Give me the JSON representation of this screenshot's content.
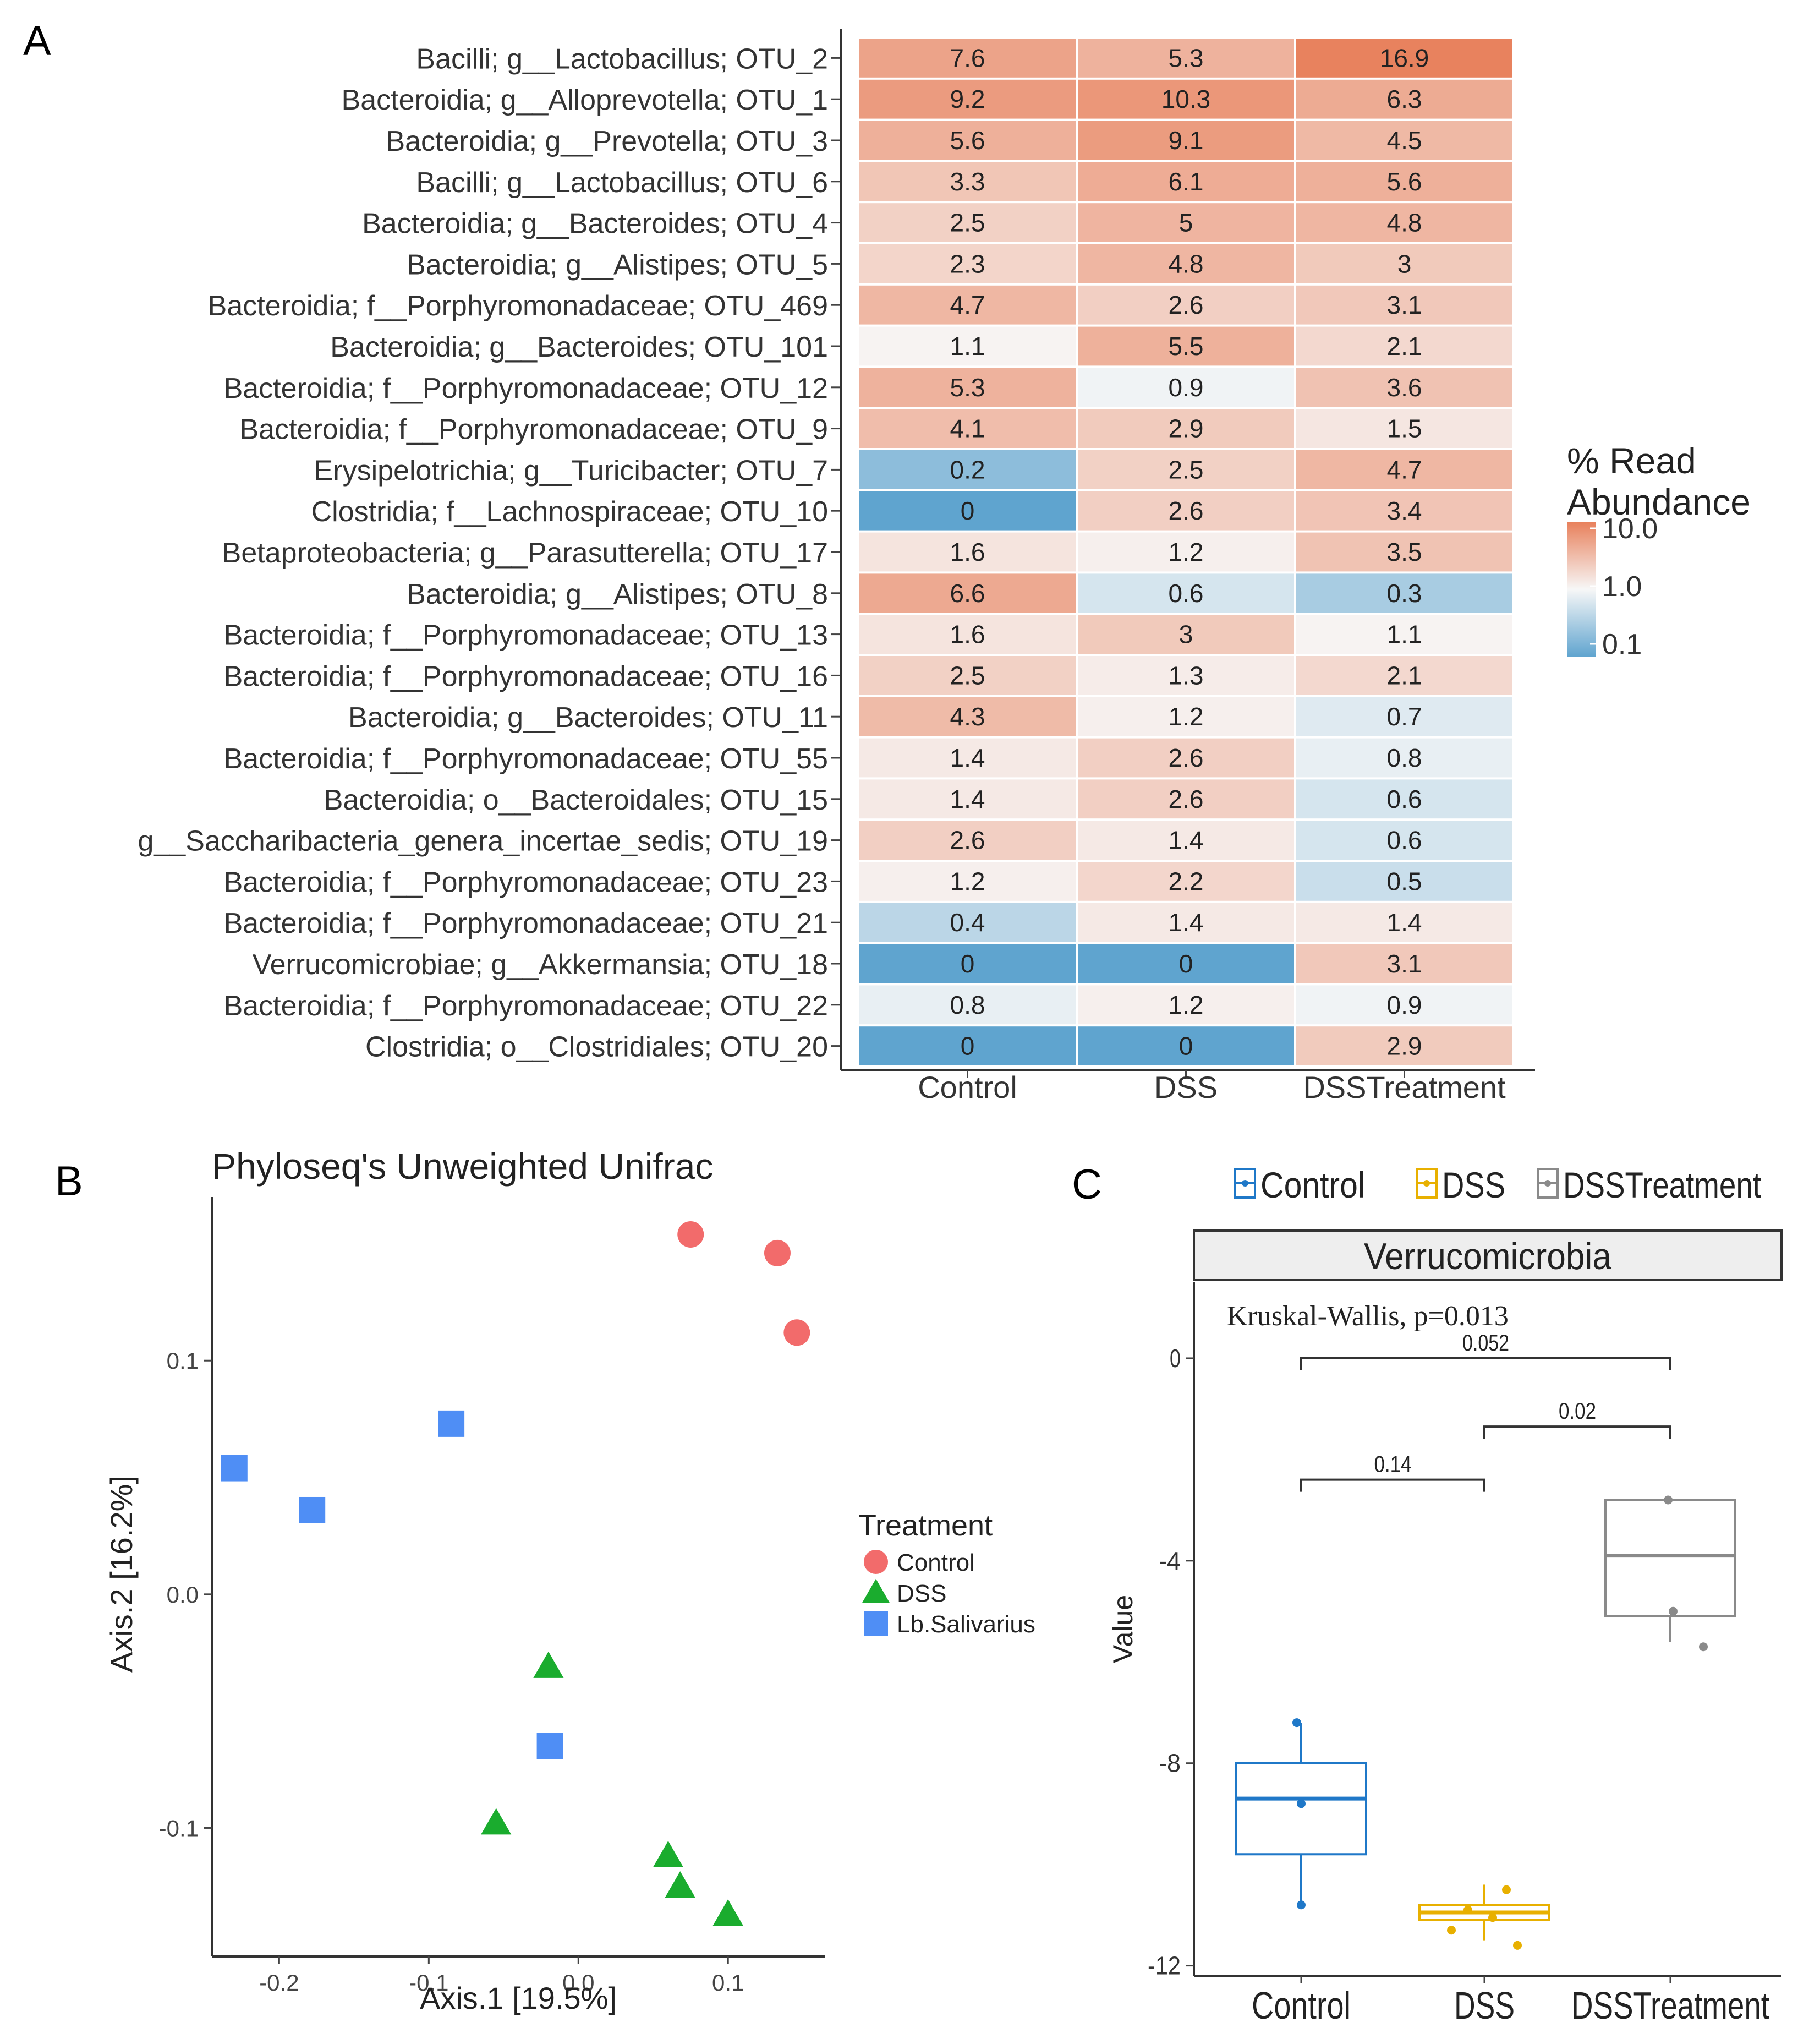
{
  "panels": {
    "a_letter": "A",
    "b_letter": "B",
    "c_letter": "C"
  },
  "colors": {
    "high": "#e8805b",
    "mid": "#f7f7f7",
    "low": "#5fa4cf",
    "control": "#f26b6b",
    "dss": "#1aac2e",
    "lb": "#4f8ef5",
    "c_control": "#1f78c8",
    "c_dss": "#e8b000",
    "c_treat": "#8a8a8a"
  },
  "chart_data": [
    {
      "type": "heatmap",
      "columns": [
        "Control",
        "DSS",
        "DSSTreatment"
      ],
      "rows": [
        "Bacilli; g__Lactobacillus; OTU_2",
        "Bacteroidia; g__Alloprevotella; OTU_1",
        "Bacteroidia; g__Prevotella; OTU_3",
        "Bacilli; g__Lactobacillus; OTU_6",
        "Bacteroidia; g__Bacteroides; OTU_4",
        "Bacteroidia; g__Alistipes; OTU_5",
        "Bacteroidia; f__Porphyromonadaceae; OTU_469",
        "Bacteroidia; g__Bacteroides; OTU_101",
        "Bacteroidia; f__Porphyromonadaceae; OTU_12",
        "Bacteroidia; f__Porphyromonadaceae; OTU_9",
        "Erysipelotrichia; g__Turicibacter; OTU_7",
        "Clostridia; f__Lachnospiraceae; OTU_10",
        "Betaproteobacteria; g__Parasutterella; OTU_17",
        "Bacteroidia; g__Alistipes; OTU_8",
        "Bacteroidia; f__Porphyromonadaceae; OTU_13",
        "Bacteroidia; f__Porphyromonadaceae; OTU_16",
        "Bacteroidia; g__Bacteroides; OTU_11",
        "Bacteroidia; f__Porphyromonadaceae; OTU_55",
        "Bacteroidia; o__Bacteroidales; OTU_15",
        "g__Saccharibacteria_genera_incertae_sedis; OTU_19",
        "Bacteroidia; f__Porphyromonadaceae; OTU_23",
        "Bacteroidia; f__Porphyromonadaceae; OTU_21",
        "Verrucomicrobiae; g__Akkermansia; OTU_18",
        "Bacteroidia; f__Porphyromonadaceae; OTU_22",
        "Clostridia; o__Clostridiales; OTU_20"
      ],
      "values": [
        [
          "7.6",
          "5.3",
          "16.9"
        ],
        [
          "9.2",
          "10.3",
          "6.3"
        ],
        [
          "5.6",
          "9.1",
          "4.5"
        ],
        [
          "3.3",
          "6.1",
          "5.6"
        ],
        [
          "2.5",
          "5",
          "4.8"
        ],
        [
          "2.3",
          "4.8",
          "3"
        ],
        [
          "4.7",
          "2.6",
          "3.1"
        ],
        [
          "1.1",
          "5.5",
          "2.1"
        ],
        [
          "5.3",
          "0.9",
          "3.6"
        ],
        [
          "4.1",
          "2.9",
          "1.5"
        ],
        [
          "0.2",
          "2.5",
          "4.7"
        ],
        [
          "0",
          "2.6",
          "3.4"
        ],
        [
          "1.6",
          "1.2",
          "3.5"
        ],
        [
          "6.6",
          "0.6",
          "0.3"
        ],
        [
          "1.6",
          "3",
          "1.1"
        ],
        [
          "2.5",
          "1.3",
          "2.1"
        ],
        [
          "4.3",
          "1.2",
          "0.7"
        ],
        [
          "1.4",
          "2.6",
          "0.8"
        ],
        [
          "1.4",
          "2.6",
          "0.6"
        ],
        [
          "2.6",
          "1.4",
          "0.6"
        ],
        [
          "1.2",
          "2.2",
          "0.5"
        ],
        [
          "0.4",
          "1.4",
          "1.4"
        ],
        [
          "0",
          "0",
          "3.1"
        ],
        [
          "0.8",
          "1.2",
          "0.9"
        ],
        [
          "0",
          "0",
          "2.9"
        ]
      ],
      "legend_title": "% Read Abundance",
      "legend_title_lines": [
        "% Read",
        "Abundance"
      ],
      "legend_labels": [
        "10.0",
        "1.0",
        "0.1"
      ],
      "scale": "log10"
    },
    {
      "type": "scatter",
      "title": "Phyloseq's Unweighted Unifrac",
      "xlabel": "Axis.1   [19.5%]",
      "ylabel": "Axis.2   [16.2%]",
      "xlim": [
        -0.245,
        0.165
      ],
      "ylim": [
        -0.155,
        0.17
      ],
      "xticks": [
        -0.2,
        -0.1,
        0.0,
        0.1
      ],
      "xtick_labels": [
        "-0.2",
        "-0.1",
        "0.0",
        "0.1"
      ],
      "yticks": [
        -0.1,
        0.0,
        0.1
      ],
      "ytick_labels": [
        "-0.1",
        "0.0",
        "0.1"
      ],
      "legend_title": "Treatment",
      "series": [
        {
          "name": "Control",
          "shape": "circle",
          "points": [
            [
              0.075,
              0.154
            ],
            [
              0.133,
              0.146
            ],
            [
              0.146,
              0.112
            ]
          ]
        },
        {
          "name": "DSS",
          "shape": "triangle",
          "points": [
            [
              -0.02,
              -0.031
            ],
            [
              -0.055,
              -0.098
            ],
            [
              0.06,
              -0.112
            ],
            [
              0.068,
              -0.125
            ],
            [
              0.1,
              -0.137
            ]
          ]
        },
        {
          "name": "Lb.Salivarius",
          "shape": "square",
          "points": [
            [
              -0.085,
              0.073
            ],
            [
              -0.23,
              0.054
            ],
            [
              -0.178,
              0.036
            ],
            [
              -0.019,
              -0.065
            ]
          ]
        }
      ]
    },
    {
      "type": "box",
      "facet_title": "Verrucomicrobia",
      "stat_text": "Kruskal-Wallis,  p=0.013",
      "ylabel": "Value",
      "ylim": [
        -12.2,
        1.5
      ],
      "yticks": [
        0,
        -4,
        -8,
        -12
      ],
      "ytick_labels": [
        "0",
        "-4",
        "-8",
        "-12"
      ],
      "categories": [
        "Control",
        "DSS",
        "DSSTreatment"
      ],
      "legend": [
        "Control",
        "DSS",
        "DSSTreatment"
      ],
      "boxes": [
        {
          "name": "Control",
          "lower_whisker": -10.8,
          "q1": -9.8,
          "median": -8.7,
          "q3": -8.0,
          "upper_whisker": -7.2,
          "points": [
            -7.2,
            -8.8,
            -10.8
          ]
        },
        {
          "name": "DSS",
          "lower_whisker": -11.5,
          "q1": -11.1,
          "median": -10.95,
          "q3": -10.8,
          "upper_whisker": -10.4,
          "points": [
            -10.5,
            -10.9,
            -11.05,
            -11.3,
            -11.6
          ]
        },
        {
          "name": "DSSTreatment",
          "lower_whisker": -5.6,
          "q1": -5.1,
          "median": -3.9,
          "q3": -2.8,
          "upper_whisker": -2.8,
          "points": [
            -2.8,
            -5.0,
            -5.7
          ]
        }
      ],
      "comparisons": [
        {
          "from": 0,
          "to": 2,
          "y": 0.0,
          "label": "0.052"
        },
        {
          "from": 1,
          "to": 2,
          "y": -1.35,
          "label": "0.02"
        },
        {
          "from": 0,
          "to": 1,
          "y": -2.4,
          "label": "0.14"
        }
      ]
    }
  ]
}
